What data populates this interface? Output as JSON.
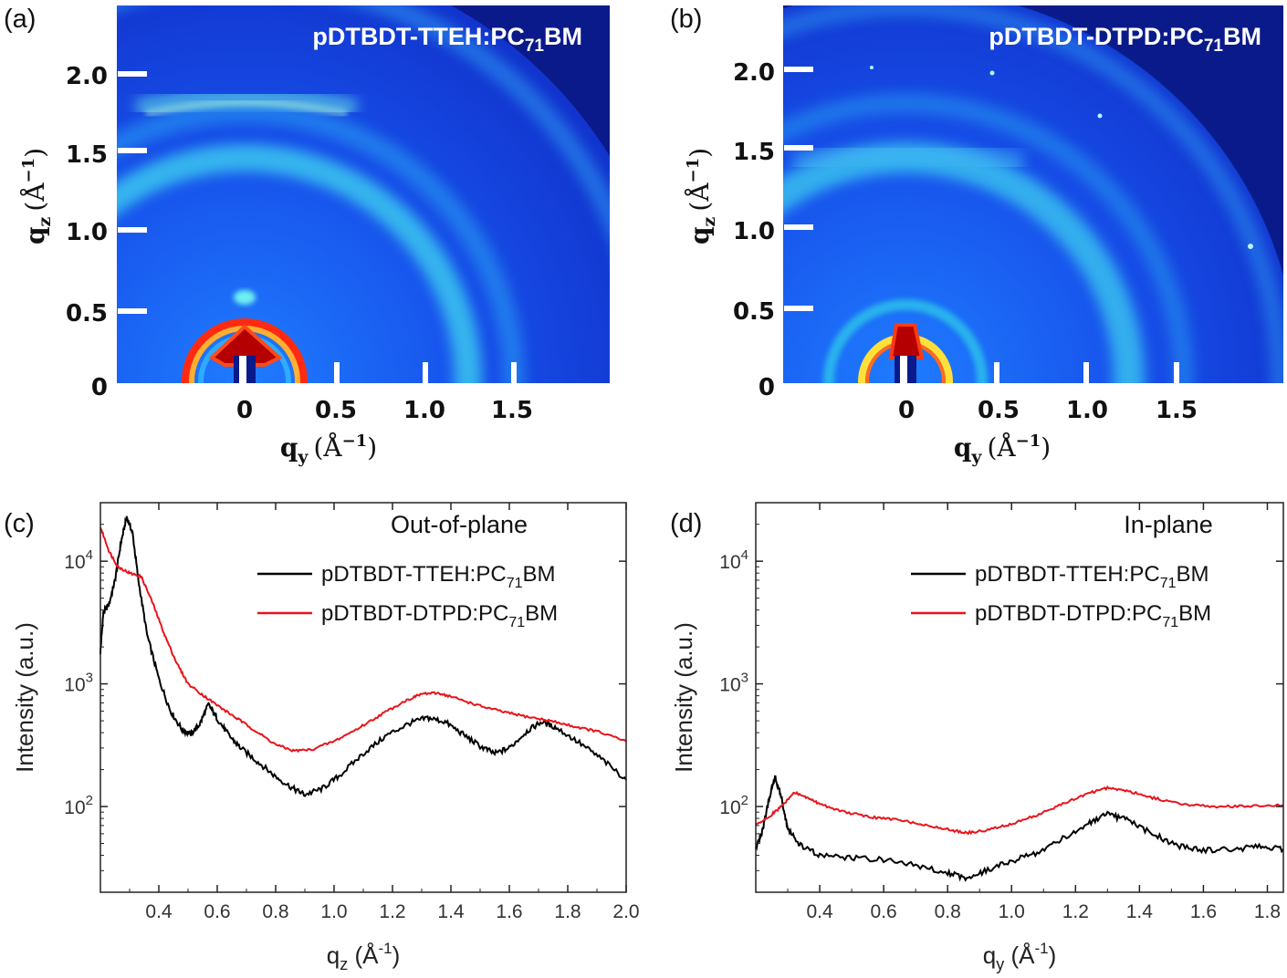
{
  "panels": {
    "a": {
      "label": "(a)",
      "title": "pDTBDT-TTEH:PC",
      "title_sub": "71",
      "title_end": "BM"
    },
    "b": {
      "label": "(b)",
      "title": "pDTBDT-DTPD:PC",
      "title_sub": "71",
      "title_end": "BM"
    },
    "c": {
      "label": "(c)"
    },
    "d": {
      "label": "(d)"
    }
  },
  "map_axes": {
    "y_ticks": [
      "2.0",
      "1.5",
      "1.0",
      "0.5",
      "0"
    ],
    "x_ticks": [
      "0",
      "0.5",
      "1.0",
      "1.5"
    ],
    "ylabel": "q",
    "ylabel_sub": "z",
    "ylabel_unit": "(Å",
    "ylabel_unit_sup": "−1",
    "ylabel_unit_end": ")",
    "xlabel": "q",
    "xlabel_sub": "y",
    "xlabel_unit": "(Å",
    "xlabel_unit_sup": "−1",
    "xlabel_unit_end": ")"
  },
  "colors": {
    "black_series": "#000000",
    "red_series": "#e8141b",
    "map_background": "#1132c8",
    "map_edge": "#0a1a8a"
  },
  "chart_data": [
    {
      "type": "line",
      "panel": "(c)",
      "title": "Out-of-plane",
      "xlabel": "q",
      "xlabel_sub": "z",
      "xlabel_unit": " (Å",
      "xlabel_unit_sup": "-1",
      "xlabel_unit_end": ")",
      "ylabel": "Intensity (a.u.)",
      "yscale": "log",
      "xlim": [
        0.2,
        2.0
      ],
      "ylim": [
        20,
        30000
      ],
      "x_ticks": [
        "0.4",
        "0.6",
        "0.8",
        "1.0",
        "1.2",
        "1.4",
        "1.6",
        "1.8",
        "2.0"
      ],
      "y_ticks": [
        {
          "base": "10",
          "exp": "2",
          "value": 100
        },
        {
          "base": "10",
          "exp": "3",
          "value": 1000
        },
        {
          "base": "10",
          "exp": "4",
          "value": 10000
        }
      ],
      "legend_position": "upper-right",
      "series": [
        {
          "name": "pDTBDT-TTEH:PC",
          "name_sub": "71",
          "name_end": "BM",
          "color": "#000000",
          "points": [
            [
              0.2,
              1800
            ],
            [
              0.21,
              3800
            ],
            [
              0.23,
              4500
            ],
            [
              0.25,
              7000
            ],
            [
              0.27,
              14000
            ],
            [
              0.29,
              23000
            ],
            [
              0.31,
              17000
            ],
            [
              0.33,
              7000
            ],
            [
              0.36,
              2500
            ],
            [
              0.4,
              1100
            ],
            [
              0.44,
              600
            ],
            [
              0.48,
              420
            ],
            [
              0.51,
              390
            ],
            [
              0.54,
              470
            ],
            [
              0.57,
              680
            ],
            [
              0.6,
              520
            ],
            [
              0.64,
              380
            ],
            [
              0.68,
              300
            ],
            [
              0.74,
              230
            ],
            [
              0.8,
              175
            ],
            [
              0.86,
              140
            ],
            [
              0.9,
              125
            ],
            [
              0.96,
              140
            ],
            [
              1.02,
              180
            ],
            [
              1.1,
              270
            ],
            [
              1.18,
              380
            ],
            [
              1.26,
              480
            ],
            [
              1.32,
              530
            ],
            [
              1.38,
              490
            ],
            [
              1.44,
              390
            ],
            [
              1.5,
              310
            ],
            [
              1.55,
              270
            ],
            [
              1.6,
              300
            ],
            [
              1.66,
              410
            ],
            [
              1.71,
              490
            ],
            [
              1.76,
              440
            ],
            [
              1.84,
              330
            ],
            [
              1.92,
              240
            ],
            [
              2.0,
              165
            ]
          ]
        },
        {
          "name": "pDTBDT-DTPD:PC",
          "name_sub": "71",
          "name_end": "BM",
          "color": "#e8141b",
          "points": [
            [
              0.2,
              19000
            ],
            [
              0.23,
              12000
            ],
            [
              0.26,
              9000
            ],
            [
              0.3,
              8000
            ],
            [
              0.34,
              7500
            ],
            [
              0.38,
              4500
            ],
            [
              0.42,
              2500
            ],
            [
              0.46,
              1500
            ],
            [
              0.5,
              1000
            ],
            [
              0.56,
              780
            ],
            [
              0.62,
              620
            ],
            [
              0.68,
              500
            ],
            [
              0.74,
              400
            ],
            [
              0.8,
              320
            ],
            [
              0.86,
              285
            ],
            [
              0.92,
              290
            ],
            [
              1.0,
              340
            ],
            [
              1.08,
              430
            ],
            [
              1.16,
              560
            ],
            [
              1.24,
              720
            ],
            [
              1.3,
              830
            ],
            [
              1.36,
              840
            ],
            [
              1.42,
              760
            ],
            [
              1.5,
              660
            ],
            [
              1.58,
              590
            ],
            [
              1.66,
              540
            ],
            [
              1.74,
              500
            ],
            [
              1.82,
              450
            ],
            [
              1.9,
              410
            ],
            [
              2.0,
              340
            ]
          ]
        }
      ]
    },
    {
      "type": "line",
      "panel": "(d)",
      "title": "In-plane",
      "xlabel": "q",
      "xlabel_sub": "y",
      "xlabel_unit": " (Å",
      "xlabel_unit_sup": "-1",
      "xlabel_unit_end": ")",
      "ylabel": "Intensity (a.u.)",
      "yscale": "log",
      "xlim": [
        0.2,
        1.85
      ],
      "ylim": [
        20,
        30000
      ],
      "x_ticks": [
        "0.4",
        "0.6",
        "0.8",
        "1.0",
        "1.2",
        "1.4",
        "1.6",
        "1.8"
      ],
      "y_ticks": [
        {
          "base": "10",
          "exp": "2",
          "value": 100
        },
        {
          "base": "10",
          "exp": "3",
          "value": 1000
        },
        {
          "base": "10",
          "exp": "4",
          "value": 10000
        }
      ],
      "legend_position": "upper-right",
      "series": [
        {
          "name": "pDTBDT-TTEH:PC",
          "name_sub": "71",
          "name_end": "BM",
          "color": "#000000",
          "points": [
            [
              0.2,
              45
            ],
            [
              0.22,
              62
            ],
            [
              0.24,
              110
            ],
            [
              0.26,
              175
            ],
            [
              0.28,
              120
            ],
            [
              0.3,
              65
            ],
            [
              0.34,
              48
            ],
            [
              0.4,
              40
            ],
            [
              0.5,
              38
            ],
            [
              0.6,
              37
            ],
            [
              0.7,
              33
            ],
            [
              0.8,
              29
            ],
            [
              0.86,
              26
            ],
            [
              0.92,
              30
            ],
            [
              1.0,
              36
            ],
            [
              1.08,
              42
            ],
            [
              1.16,
              55
            ],
            [
              1.24,
              72
            ],
            [
              1.3,
              86
            ],
            [
              1.36,
              78
            ],
            [
              1.44,
              60
            ],
            [
              1.52,
              48
            ],
            [
              1.6,
              44
            ],
            [
              1.7,
              45
            ],
            [
              1.78,
              47
            ],
            [
              1.85,
              45
            ]
          ]
        },
        {
          "name": "pDTBDT-DTPD:PC",
          "name_sub": "71",
          "name_end": "BM",
          "color": "#e8141b",
          "points": [
            [
              0.2,
              70
            ],
            [
              0.24,
              82
            ],
            [
              0.28,
              100
            ],
            [
              0.32,
              130
            ],
            [
              0.36,
              118
            ],
            [
              0.4,
              105
            ],
            [
              0.48,
              90
            ],
            [
              0.56,
              82
            ],
            [
              0.64,
              78
            ],
            [
              0.72,
              72
            ],
            [
              0.8,
              65
            ],
            [
              0.86,
              61
            ],
            [
              0.92,
              64
            ],
            [
              1.0,
              72
            ],
            [
              1.08,
              85
            ],
            [
              1.16,
              105
            ],
            [
              1.24,
              128
            ],
            [
              1.3,
              142
            ],
            [
              1.36,
              135
            ],
            [
              1.44,
              118
            ],
            [
              1.52,
              106
            ],
            [
              1.62,
              100
            ],
            [
              1.72,
              100
            ],
            [
              1.85,
              103
            ]
          ]
        }
      ]
    }
  ]
}
